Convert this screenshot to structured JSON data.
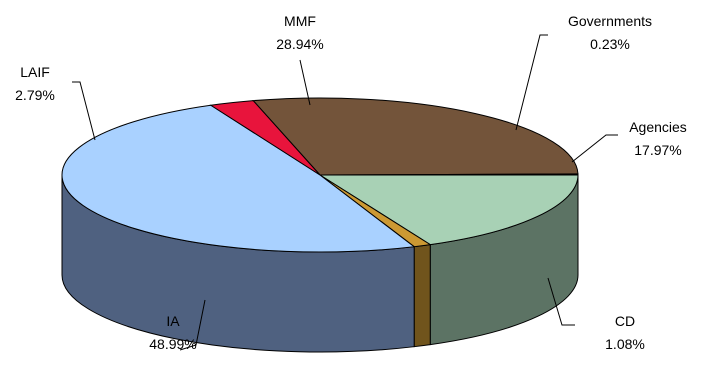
{
  "chart_data": {
    "type": "pie",
    "style": "3d",
    "slices": [
      {
        "label": "MMF",
        "percent_label": "28.94%",
        "value": 28.94,
        "color": "#73543A"
      },
      {
        "label": "Governments",
        "percent_label": "0.23%",
        "value": 0.23,
        "color": "#3A3A3A"
      },
      {
        "label": "Agencies",
        "percent_label": "17.97%",
        "value": 17.97,
        "color": "#A8D1B5"
      },
      {
        "label": "CD",
        "percent_label": "1.08%",
        "value": 1.08,
        "color": "#CC9933"
      },
      {
        "label": "IA",
        "percent_label": "48.99%",
        "value": 48.99,
        "color": "#A9D1FF"
      },
      {
        "label": "LAIF",
        "percent_label": "2.79%",
        "value": 2.79,
        "color": "#E8143C"
      }
    ]
  }
}
